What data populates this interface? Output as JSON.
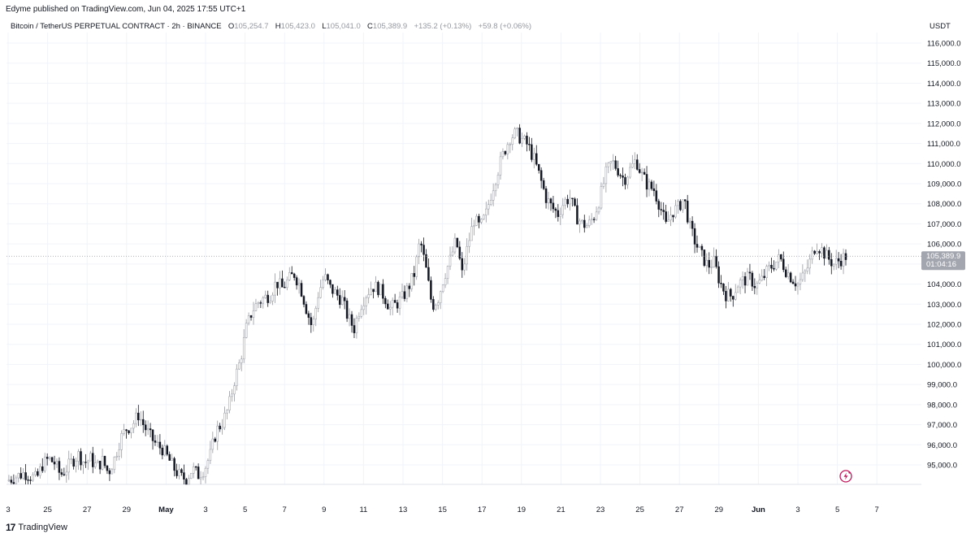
{
  "header": {
    "published": "Edyme published on TradingView.com, Jun 04, 2025 17:55 UTC+1",
    "symbol": "Bitcoin / TetherUS PERPETUAL CONTRACT · 2h · BINANCE",
    "o_label": "O",
    "o_value": "105,254.7",
    "h_label": "H",
    "h_value": "105,423.0",
    "l_label": "L",
    "l_value": "105,041.0",
    "c_label": "C",
    "c_value": "105,389.9",
    "change": "+135.2 (+0.13%)",
    "change2": "+59.8 (+0.06%)"
  },
  "footer": {
    "logo": "17",
    "brand": "TradingView"
  },
  "price_axis": {
    "unit": "USDT"
  },
  "price_tag": {
    "price": "105,389.9",
    "countdown": "01:04:16"
  },
  "colors": {
    "candle_up": "#ffffff",
    "candle_up_border": "#9598a1",
    "candle_down": "#131722",
    "grid": "#f0f3fa",
    "tag_bg": "#a3a6af",
    "bolt": "#c2185b"
  },
  "icons": {
    "bolt": "lightning-bolt-icon"
  },
  "chart_data": {
    "type": "candlestick",
    "title": "Bitcoin / TetherUS PERPETUAL CONTRACT · 2h · BINANCE",
    "ylim": [
      94000,
      116500
    ],
    "y_ticks": [
      "116,000.0",
      "115,000.0",
      "114,000.0",
      "113,000.0",
      "112,000.0",
      "111,000.0",
      "110,000.0",
      "109,000.0",
      "108,000.0",
      "107,000.0",
      "106,000.0",
      "105,000.0",
      "104,000.0",
      "103,000.0",
      "102,000.0",
      "101,000.0",
      "100,000.0",
      "99,000.0",
      "98,000.0",
      "97,000.0",
      "96,000.0",
      "95,000.0"
    ],
    "x_ticks": [
      "3",
      "25",
      "27",
      "29",
      "May",
      "3",
      "5",
      "7",
      "9",
      "11",
      "13",
      "15",
      "17",
      "19",
      "21",
      "23",
      "25",
      "27",
      "29",
      "Jun",
      "3",
      "5",
      "7"
    ],
    "grid": true,
    "last_price": 105389.9,
    "series_close_path": [
      [
        0,
        94200
      ],
      [
        3,
        94600
      ],
      [
        5,
        94300
      ],
      [
        6,
        95000
      ],
      [
        7,
        95300
      ],
      [
        8,
        95100
      ],
      [
        9,
        94500
      ],
      [
        10,
        94800
      ],
      [
        11,
        95200
      ],
      [
        12,
        95500
      ],
      [
        13,
        95100
      ],
      [
        14,
        95300
      ],
      [
        15,
        94900
      ],
      [
        16,
        95200
      ],
      [
        17,
        94600
      ],
      [
        18,
        95300
      ],
      [
        19,
        96300
      ],
      [
        20,
        96800
      ],
      [
        21,
        97000
      ],
      [
        22,
        97500
      ],
      [
        23,
        96900
      ],
      [
        24,
        96400
      ],
      [
        25,
        96000
      ],
      [
        26,
        95800
      ],
      [
        27,
        95300
      ],
      [
        28,
        94800
      ],
      [
        29,
        94400
      ],
      [
        30,
        94300
      ],
      [
        31,
        94800
      ],
      [
        32,
        94500
      ],
      [
        33,
        94800
      ],
      [
        34,
        95500
      ],
      [
        35,
        96700
      ],
      [
        36,
        97100
      ],
      [
        37,
        97800
      ],
      [
        38,
        99200
      ],
      [
        39,
        100200
      ],
      [
        40,
        101800
      ],
      [
        41,
        102700
      ],
      [
        42,
        103100
      ],
      [
        43,
        103300
      ],
      [
        44,
        103500
      ],
      [
        45,
        104100
      ],
      [
        46,
        103800
      ],
      [
        47,
        104200
      ],
      [
        48,
        104500
      ],
      [
        49,
        103900
      ],
      [
        50,
        102800
      ],
      [
        51,
        101800
      ],
      [
        52,
        103500
      ],
      [
        53,
        104400
      ],
      [
        54,
        103800
      ],
      [
        55,
        103500
      ],
      [
        56,
        103200
      ],
      [
        57,
        102300
      ],
      [
        58,
        101800
      ],
      [
        59,
        102900
      ],
      [
        60,
        103500
      ],
      [
        61,
        103900
      ],
      [
        62,
        103800
      ],
      [
        63,
        103400
      ],
      [
        64,
        102800
      ],
      [
        65,
        103000
      ],
      [
        66,
        103300
      ],
      [
        67,
        103800
      ],
      [
        68,
        104500
      ],
      [
        69,
        106200
      ],
      [
        70,
        104700
      ],
      [
        71,
        102900
      ],
      [
        72,
        103300
      ],
      [
        73,
        104400
      ],
      [
        74,
        105200
      ],
      [
        75,
        106200
      ],
      [
        76,
        104500
      ],
      [
        77,
        106000
      ],
      [
        78,
        107200
      ],
      [
        79,
        106800
      ],
      [
        80,
        107500
      ],
      [
        81,
        108700
      ],
      [
        82,
        109700
      ],
      [
        83,
        110600
      ],
      [
        84,
        111300
      ],
      [
        85,
        111500
      ],
      [
        86,
        111200
      ],
      [
        87,
        110900
      ],
      [
        88,
        110200
      ],
      [
        89,
        109300
      ],
      [
        90,
        108300
      ],
      [
        91,
        107800
      ],
      [
        92,
        107500
      ],
      [
        93,
        108100
      ],
      [
        94,
        108300
      ],
      [
        95,
        107400
      ],
      [
        96,
        107000
      ],
      [
        97,
        106900
      ],
      [
        98,
        107400
      ],
      [
        99,
        108300
      ],
      [
        100,
        109500
      ],
      [
        101,
        110100
      ],
      [
        102,
        109700
      ],
      [
        103,
        109200
      ],
      [
        104,
        109700
      ],
      [
        105,
        110200
      ],
      [
        106,
        109400
      ],
      [
        107,
        108900
      ],
      [
        108,
        108700
      ],
      [
        109,
        107900
      ],
      [
        110,
        106900
      ],
      [
        111,
        107600
      ],
      [
        112,
        107800
      ],
      [
        113,
        108300
      ],
      [
        114,
        106800
      ],
      [
        115,
        106000
      ],
      [
        116,
        105400
      ],
      [
        117,
        104900
      ],
      [
        118,
        105100
      ],
      [
        119,
        104100
      ],
      [
        120,
        103500
      ],
      [
        121,
        103400
      ],
      [
        122,
        104000
      ],
      [
        123,
        104200
      ],
      [
        124,
        104300
      ],
      [
        125,
        103900
      ],
      [
        126,
        104200
      ],
      [
        127,
        104700
      ],
      [
        128,
        105000
      ],
      [
        129,
        105300
      ],
      [
        130,
        104700
      ],
      [
        131,
        104300
      ],
      [
        132,
        104000
      ],
      [
        133,
        104400
      ],
      [
        134,
        105100
      ],
      [
        135,
        106000
      ],
      [
        136,
        105700
      ],
      [
        137,
        105300
      ],
      [
        138,
        105000
      ],
      [
        139,
        105200
      ],
      [
        140,
        105389.9
      ]
    ]
  }
}
